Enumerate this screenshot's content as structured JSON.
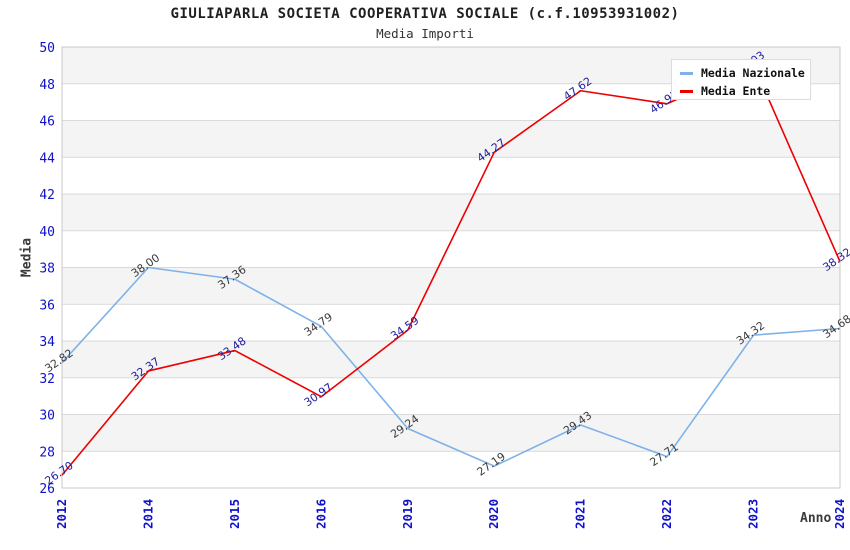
{
  "header": {
    "title": "GIULIAPARLA SOCIETA COOPERATIVA SOCIALE (c.f.10953931002)",
    "subtitle": "Media Importi"
  },
  "axes": {
    "y_title": "Media",
    "x_title": "Anno"
  },
  "chart_data": {
    "type": "line",
    "title": "GIULIAPARLA SOCIETA COOPERATIVA SOCIALE (c.f.10953931002)",
    "subtitle": "Media Importi",
    "xlabel": "Anno",
    "ylabel": "Media",
    "categories": [
      "2012",
      "2014",
      "2015",
      "2016",
      "2019",
      "2020",
      "2021",
      "2022",
      "2023",
      "2024"
    ],
    "series": [
      {
        "name": "Media Nazionale",
        "color": "#7EB2E8",
        "label_color": "#3A3A3A",
        "values": [
          32.82,
          38.0,
          37.36,
          34.79,
          29.24,
          27.19,
          29.43,
          27.71,
          34.32,
          34.68
        ],
        "labels": [
          "32.82",
          "38.00",
          "37.36",
          "34.79",
          "29.24",
          "27.19",
          "29.43",
          "27.71",
          "34.32",
          "34.68"
        ]
      },
      {
        "name": "Media Ente",
        "color": "#EE0000",
        "label_color": "#2020A0",
        "values": [
          26.7,
          32.37,
          33.48,
          30.97,
          34.59,
          44.27,
          47.62,
          46.91,
          49.03,
          38.32
        ],
        "labels": [
          "26.70",
          "32.37",
          "33.48",
          "30.97",
          "34.59",
          "44.27",
          "47.62",
          "46.91",
          "49.03",
          "38.32"
        ]
      }
    ],
    "ylim": [
      26,
      50
    ],
    "yticks": [
      26,
      28,
      30,
      32,
      34,
      36,
      38,
      40,
      42,
      44,
      46,
      48,
      50
    ],
    "grid": true,
    "legend_position": "top-right",
    "tick_label_color": "#1111CC",
    "band_colors": [
      "#F4F4F4",
      "#FFFFFF"
    ],
    "grid_color": "#D9D9D9",
    "border_color": "#C9C9C9"
  }
}
